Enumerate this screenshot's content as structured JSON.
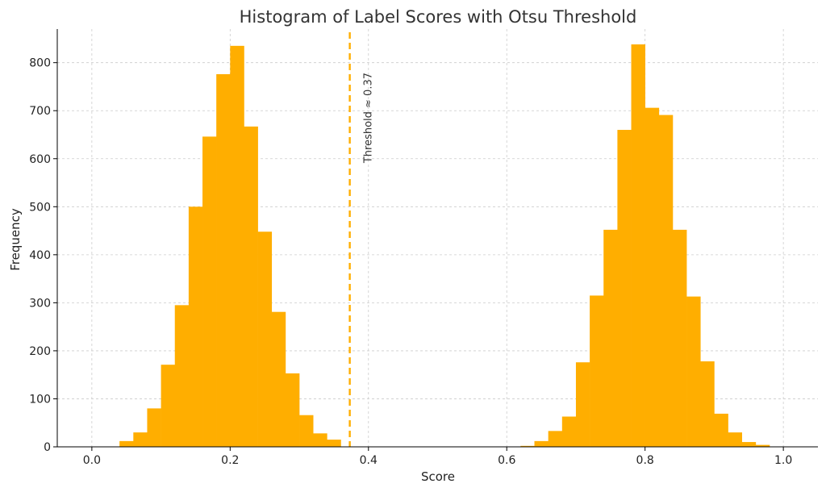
{
  "chart_data": {
    "type": "bar",
    "title": "Histogram of Label Scores with Otsu Threshold",
    "xlabel": "Score",
    "ylabel": "Frequency",
    "xlim": [
      -0.05,
      1.05
    ],
    "ylim": [
      0,
      870
    ],
    "x_ticks": [
      0.0,
      0.2,
      0.4,
      0.6,
      0.8,
      1.0
    ],
    "x_tick_labels": [
      "0.0",
      "0.2",
      "0.4",
      "0.6",
      "0.8",
      "1.0"
    ],
    "y_ticks": [
      0,
      100,
      200,
      300,
      400,
      500,
      600,
      700,
      800
    ],
    "y_tick_labels": [
      "0",
      "100",
      "200",
      "300",
      "400",
      "500",
      "600",
      "700",
      "800"
    ],
    "grid": true,
    "bar_color": "#FFAE00",
    "bin_width": 0.02,
    "bins": [
      {
        "x": 0.04,
        "value": 12
      },
      {
        "x": 0.06,
        "value": 30
      },
      {
        "x": 0.08,
        "value": 80
      },
      {
        "x": 0.1,
        "value": 171
      },
      {
        "x": 0.12,
        "value": 295
      },
      {
        "x": 0.14,
        "value": 500
      },
      {
        "x": 0.16,
        "value": 646
      },
      {
        "x": 0.18,
        "value": 776
      },
      {
        "x": 0.2,
        "value": 835
      },
      {
        "x": 0.22,
        "value": 667
      },
      {
        "x": 0.24,
        "value": 448
      },
      {
        "x": 0.26,
        "value": 281
      },
      {
        "x": 0.28,
        "value": 153
      },
      {
        "x": 0.3,
        "value": 66
      },
      {
        "x": 0.32,
        "value": 28
      },
      {
        "x": 0.34,
        "value": 15
      },
      {
        "x": 0.62,
        "value": 2
      },
      {
        "x": 0.64,
        "value": 12
      },
      {
        "x": 0.66,
        "value": 33
      },
      {
        "x": 0.68,
        "value": 63
      },
      {
        "x": 0.7,
        "value": 176
      },
      {
        "x": 0.72,
        "value": 315
      },
      {
        "x": 0.74,
        "value": 452
      },
      {
        "x": 0.76,
        "value": 660
      },
      {
        "x": 0.78,
        "value": 838
      },
      {
        "x": 0.8,
        "value": 706
      },
      {
        "x": 0.82,
        "value": 691
      },
      {
        "x": 0.84,
        "value": 452
      },
      {
        "x": 0.86,
        "value": 313
      },
      {
        "x": 0.88,
        "value": 178
      },
      {
        "x": 0.9,
        "value": 69
      },
      {
        "x": 0.92,
        "value": 30
      },
      {
        "x": 0.94,
        "value": 10
      },
      {
        "x": 0.96,
        "value": 4
      }
    ],
    "threshold": {
      "value": 0.373,
      "label": "Threshold ≈ 0.37",
      "color": "#FFAE00",
      "style": "dashed"
    }
  }
}
